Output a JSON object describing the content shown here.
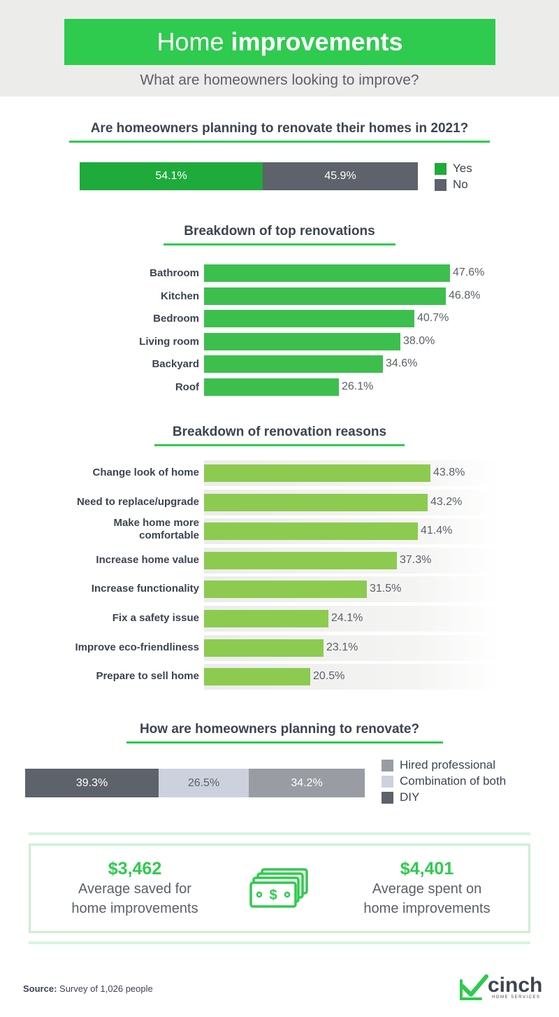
{
  "header": {
    "title_light": "Home",
    "title_bold": "improvements",
    "subtitle": "What are homeowners looking to improve?"
  },
  "colors": {
    "brand_green": "#2ecb4e",
    "yes": "#1faa3c",
    "no": "#5d626b",
    "renovations_bar": "#3dbf4e",
    "reasons_bar": "#8ccb4f",
    "hired": "#9a9ca3",
    "combination": "#cdd1dd",
    "diy": "#5d626b"
  },
  "chart_data": [
    {
      "type": "bar",
      "stacked": true,
      "title": "Are homeowners planning to renovate their homes in 2021?",
      "series": [
        {
          "name": "Yes",
          "value": 54.1,
          "label": "54.1%"
        },
        {
          "name": "No",
          "value": 45.9,
          "label": "45.9%"
        }
      ],
      "legend": "right"
    },
    {
      "type": "bar",
      "orientation": "horizontal",
      "title": "Breakdown of top renovations",
      "categories": [
        "Bathroom",
        "Kitchen",
        "Bedroom",
        "Living room",
        "Backyard",
        "Roof"
      ],
      "values": [
        47.6,
        46.8,
        40.7,
        38.0,
        34.6,
        26.1
      ],
      "labels": [
        "47.6%",
        "46.8%",
        "40.7%",
        "38.0%",
        "34.6%",
        "26.1%"
      ]
    },
    {
      "type": "bar",
      "orientation": "horizontal",
      "title": "Breakdown of renovation reasons",
      "categories": [
        "Change look of home",
        "Need to replace/upgrade",
        "Make home more comfortable",
        "Increase home value",
        "Increase functionality",
        "Fix a safety issue",
        "Improve eco-friendliness",
        "Prepare to sell home"
      ],
      "values": [
        43.8,
        43.2,
        41.4,
        37.3,
        31.5,
        24.1,
        23.1,
        20.5
      ],
      "labels": [
        "43.8%",
        "43.2%",
        "41.4%",
        "37.3%",
        "31.5%",
        "24.1%",
        "23.1%",
        "20.5%"
      ]
    },
    {
      "type": "bar",
      "stacked": true,
      "title": "How are homeowners planning to renovate?",
      "series": [
        {
          "name": "DIY",
          "value": 39.3,
          "label": "39.3%"
        },
        {
          "name": "Combination of both",
          "value": 26.5,
          "label": "26.5%"
        },
        {
          "name": "Hired professional",
          "value": 34.2,
          "label": "34.2%"
        }
      ],
      "legend_order": [
        "Hired professional",
        "Combination of both",
        "DIY"
      ],
      "legend": "right"
    }
  ],
  "stats": {
    "saved_value": "$3,462",
    "saved_label_1": "Average saved for",
    "saved_label_2": "home improvements",
    "spent_value": "$4,401",
    "spent_label_1": "Average spent on",
    "spent_label_2": "home improvements",
    "icon": "money-stack-icon"
  },
  "footer": {
    "source_label": "Source:",
    "source_text": "Survey of 1,026 people",
    "logo_text": "cinch",
    "logo_sub": "HOME SERVICES"
  }
}
